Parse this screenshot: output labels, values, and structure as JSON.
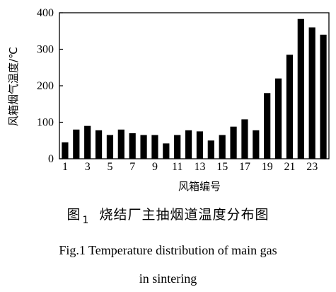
{
  "chart_data": {
    "type": "bar",
    "ylabel": "风箱烟气温度/℃",
    "xlabel": "风箱编号",
    "ylim": [
      0,
      400
    ],
    "yticks": [
      0,
      100,
      200,
      300,
      400
    ],
    "categories": [
      "1",
      "2",
      "3",
      "4",
      "5",
      "6",
      "7",
      "8",
      "9",
      "10",
      "11",
      "12",
      "13",
      "14",
      "15",
      "16",
      "17",
      "18",
      "19",
      "20",
      "21",
      "22",
      "23",
      "24"
    ],
    "xtick_labels": [
      "1",
      "3",
      "5",
      "7",
      "9",
      "11",
      "13",
      "15",
      "17",
      "19",
      "21",
      "23"
    ],
    "values": [
      45,
      80,
      90,
      78,
      65,
      80,
      70,
      65,
      65,
      42,
      65,
      78,
      75,
      50,
      65,
      88,
      108,
      78,
      180,
      220,
      285,
      383,
      360,
      340
    ],
    "bar_color": "#000000"
  },
  "caption": {
    "zh_prefix": "图",
    "zh_number": "1",
    "zh_title": "烧结厂主抽烟道温度分布图",
    "en_line1": "Fig.1 Temperature distribution of main gas",
    "en_line2": "in sintering"
  }
}
